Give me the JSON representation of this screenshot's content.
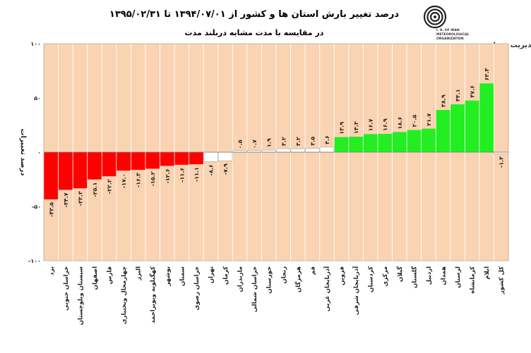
{
  "header": {
    "title": "درصد تغییر بارش استان ها و کشور از ۱۳۹۴/۰۷/۰۱ تا ۱۳۹۵/۰۲/۳۱",
    "subtitle": "در مقایسه با مدت مشابه دربلند مدت",
    "logo_text_1": "I. R. OF IRAN",
    "logo_text_2": "METEOROLOGICAL",
    "logo_text_3": "ORGANIZATION",
    "center_name": "مرکز ملی خشکسالی و مدیریت بحران"
  },
  "colors": {
    "plot_bg": "#FAD3B2",
    "negative": "#FF0000",
    "neutral": "#FFFFFF",
    "positive": "#22EE22",
    "grid": "#ffffff"
  },
  "chart_data": {
    "type": "bar",
    "ylabel": "درصد تغییرات",
    "ylim": [
      -100,
      100
    ],
    "yticks": [
      {
        "v": 100,
        "label": "۱۰۰"
      },
      {
        "v": 50,
        "label": "۵۰"
      },
      {
        "v": 0,
        "label": "۰"
      },
      {
        "v": -50,
        "label": "-۵۰"
      },
      {
        "v": -100,
        "label": "-۱۰۰"
      }
    ],
    "categories": [
      "یزد",
      "خراسان جنوبی",
      "سیستان وبلوچستان",
      "اصفهان",
      "فارس",
      "چهارمحال وبختیاری",
      "البرز",
      "کهگیلویه وبویراحمد",
      "بوشهر",
      "سمنان",
      "خراسان رضوی",
      "تهران",
      "کرمان",
      "مازندران",
      "خراسان شمالی",
      "خوزستان",
      "زنجان",
      "هرمزگان",
      "قم",
      "آذربایجان غربی",
      "قزوین",
      "آذربایجان شرقی",
      "کردستان",
      "مرکزی",
      "گیلان",
      "گلستان",
      "اردبیل",
      "همدان",
      "لرستان",
      "کرمانشاه",
      "ایلام",
      "کل کشور"
    ],
    "values": [
      -43.5,
      -34.7,
      -33.3,
      -25.1,
      -22.2,
      -17.0,
      -16.3,
      -15.2,
      -12.6,
      -11.6,
      -11.1,
      -8.6,
      -7.9,
      0.5,
      0.7,
      1.9,
      3.2,
      3.2,
      3.5,
      4.6,
      13.9,
      14.3,
      16.7,
      16.9,
      18.6,
      20.5,
      21.7,
      38.9,
      44.1,
      47.6,
      63.4,
      -1.3
    ],
    "labels": [
      "-۴۳.۵",
      "-۳۴.۷",
      "-۳۳.۳",
      "-۲۵.۱",
      "-۲۲.۲",
      "-۱۷.۰",
      "-۱۶.۳",
      "-۱۵.۲",
      "-۱۲.۶",
      "-۱۱.۶",
      "-۱۱.۱",
      "-۸.۶",
      "-۷.۹",
      "۰.۵",
      "۰.۷",
      "۱.۹",
      "۳.۲",
      "۳.۲",
      "۳.۵",
      "۴.۶",
      "۱۳.۹",
      "۱۴.۳",
      "۱۶.۷",
      "۱۶.۹",
      "۱۸.۶",
      "۲۰.۵",
      "۲۱.۷",
      "۳۸.۹",
      "۴۴.۱",
      "۴۷.۶",
      "۶۳.۴",
      "-۱.۳"
    ],
    "color_classes": [
      "neg",
      "neg",
      "neg",
      "neg",
      "neg",
      "neg",
      "neg",
      "neg",
      "neg",
      "neg",
      "neg",
      "neu",
      "neu",
      "neu",
      "neu",
      "neu",
      "neu",
      "neu",
      "neu",
      "neu",
      "pos",
      "pos",
      "pos",
      "pos",
      "pos",
      "pos",
      "pos",
      "pos",
      "pos",
      "pos",
      "pos",
      "neu"
    ]
  }
}
